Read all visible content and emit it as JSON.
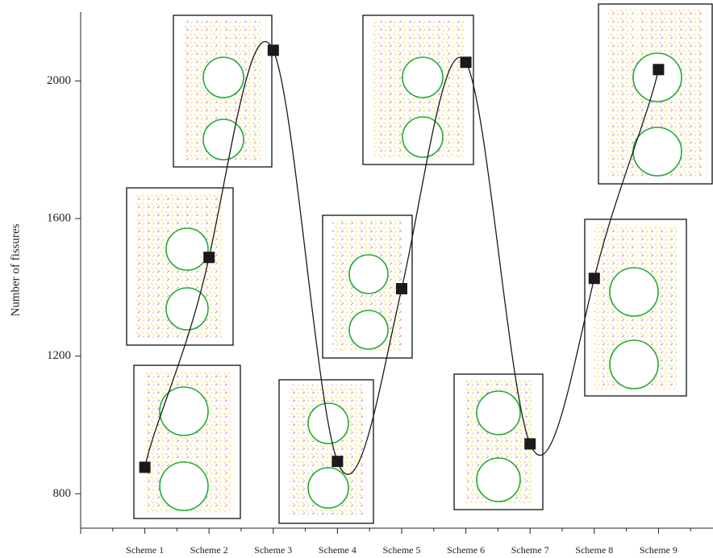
{
  "chart_data": {
    "type": "line",
    "y_label": "Number of fissures",
    "categories": [
      "Scheme 1",
      "Scheme 2",
      "Scheme 3",
      "Scheme 4",
      "Scheme 5",
      "Scheme 6",
      "Scheme 7",
      "Scheme 8",
      "Scheme 9"
    ],
    "values": [
      877,
      1487,
      2089,
      894,
      1396,
      2054,
      945,
      1426,
      2033
    ],
    "color": "#1a1a1a",
    "ylim": [
      700,
      2200
    ],
    "yticks": [
      800,
      1200,
      1600,
      2000
    ]
  }
}
